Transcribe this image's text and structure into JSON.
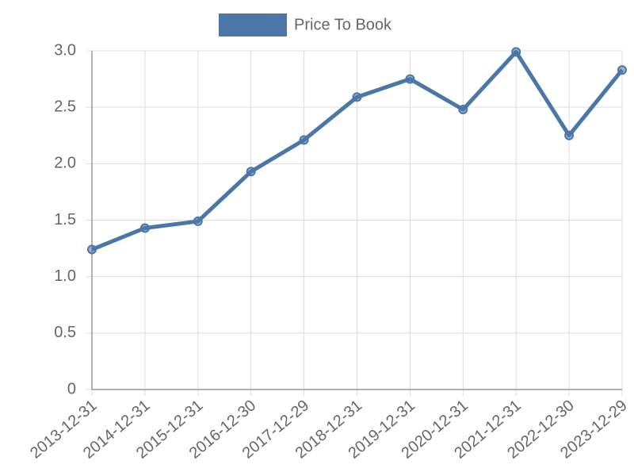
{
  "chart_data": {
    "type": "line",
    "categories": [
      "2013-12-31",
      "2014-12-31",
      "2015-12-31",
      "2016-12-30",
      "2017-12-29",
      "2018-12-31",
      "2019-12-31",
      "2020-12-31",
      "2021-12-31",
      "2022-12-30",
      "2023-12-29"
    ],
    "series": [
      {
        "name": "Price To Book",
        "color": "#4a76a8",
        "values": [
          1.24,
          1.43,
          1.49,
          1.93,
          2.21,
          2.59,
          2.75,
          2.48,
          2.99,
          2.25,
          2.83
        ]
      }
    ],
    "ylim": [
      0,
      3
    ],
    "yticks": [
      0,
      0.5,
      {
        "value": 1,
        "label": "1.0"
      },
      1.5,
      {
        "value": 2,
        "label": "2.0"
      },
      2.5,
      {
        "value": 3,
        "label": "3.0"
      }
    ],
    "grid": true,
    "legend": "top"
  }
}
